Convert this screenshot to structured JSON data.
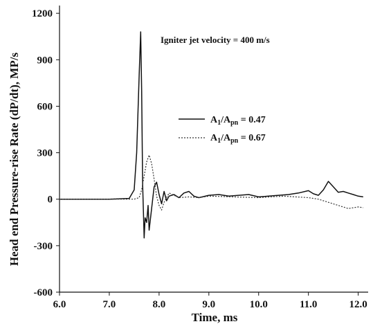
{
  "chart_data": {
    "type": "line",
    "title": "",
    "annotation": "Igniter jet velocity = 400 m/s",
    "xlabel": "Time, ms",
    "ylabel": "Head end Pressure-rise Rate (dP/dt), MP/s",
    "xlim": [
      6.0,
      12.2
    ],
    "ylim": [
      -600,
      1250
    ],
    "x_ticks": [
      "6.0",
      "7.0",
      "8.0",
      "9.0",
      "10.0",
      "11.0",
      "12.0"
    ],
    "y_ticks": [
      "1200",
      "900",
      "600",
      "300",
      "0",
      "-300",
      "-600"
    ],
    "legend_position": "center-right",
    "series": [
      {
        "name": "A1/Apn = 0.47",
        "legend": {
          "main": "A",
          "sub1": "1",
          "slash": "/A",
          "sub2": "pn",
          "value": " = 0.47"
        },
        "style": "solid",
        "color": "#111111",
        "x": [
          6.0,
          7.0,
          7.4,
          7.5,
          7.55,
          7.6,
          7.63,
          7.65,
          7.67,
          7.7,
          7.72,
          7.75,
          7.78,
          7.8,
          7.85,
          7.9,
          7.95,
          8.0,
          8.05,
          8.1,
          8.15,
          8.2,
          8.3,
          8.4,
          8.5,
          8.6,
          8.7,
          8.8,
          9.0,
          9.2,
          9.4,
          9.6,
          9.8,
          10.0,
          10.2,
          10.4,
          10.6,
          10.8,
          11.0,
          11.1,
          11.2,
          11.3,
          11.4,
          11.5,
          11.6,
          11.7,
          11.8,
          11.9,
          12.0,
          12.1
        ],
        "y": [
          0,
          0,
          5,
          60,
          300,
          800,
          1080,
          700,
          100,
          -250,
          -120,
          -150,
          -40,
          -200,
          -60,
          80,
          110,
          30,
          -30,
          50,
          -10,
          20,
          30,
          10,
          40,
          50,
          20,
          10,
          25,
          30,
          20,
          25,
          30,
          15,
          20,
          25,
          30,
          40,
          55,
          35,
          25,
          60,
          115,
          80,
          45,
          50,
          40,
          30,
          20,
          15
        ]
      },
      {
        "name": "A1/Apn = 0.67",
        "legend": {
          "main": "A",
          "sub1": "1",
          "slash": "/A",
          "sub2": "pn",
          "value": " = 0.67"
        },
        "style": "dotted",
        "color": "#333333",
        "x": [
          6.0,
          7.0,
          7.5,
          7.6,
          7.65,
          7.7,
          7.75,
          7.8,
          7.85,
          7.9,
          7.95,
          8.0,
          8.05,
          8.1,
          8.2,
          8.3,
          8.4,
          8.6,
          8.8,
          9.0,
          9.5,
          10.0,
          10.5,
          11.0,
          11.2,
          11.4,
          11.6,
          11.8,
          12.0,
          12.1
        ],
        "y": [
          0,
          0,
          0,
          10,
          60,
          150,
          240,
          285,
          230,
          130,
          20,
          -40,
          -70,
          -20,
          40,
          25,
          10,
          15,
          10,
          20,
          15,
          10,
          20,
          10,
          0,
          -20,
          -40,
          -60,
          -50,
          -55
        ]
      }
    ]
  }
}
